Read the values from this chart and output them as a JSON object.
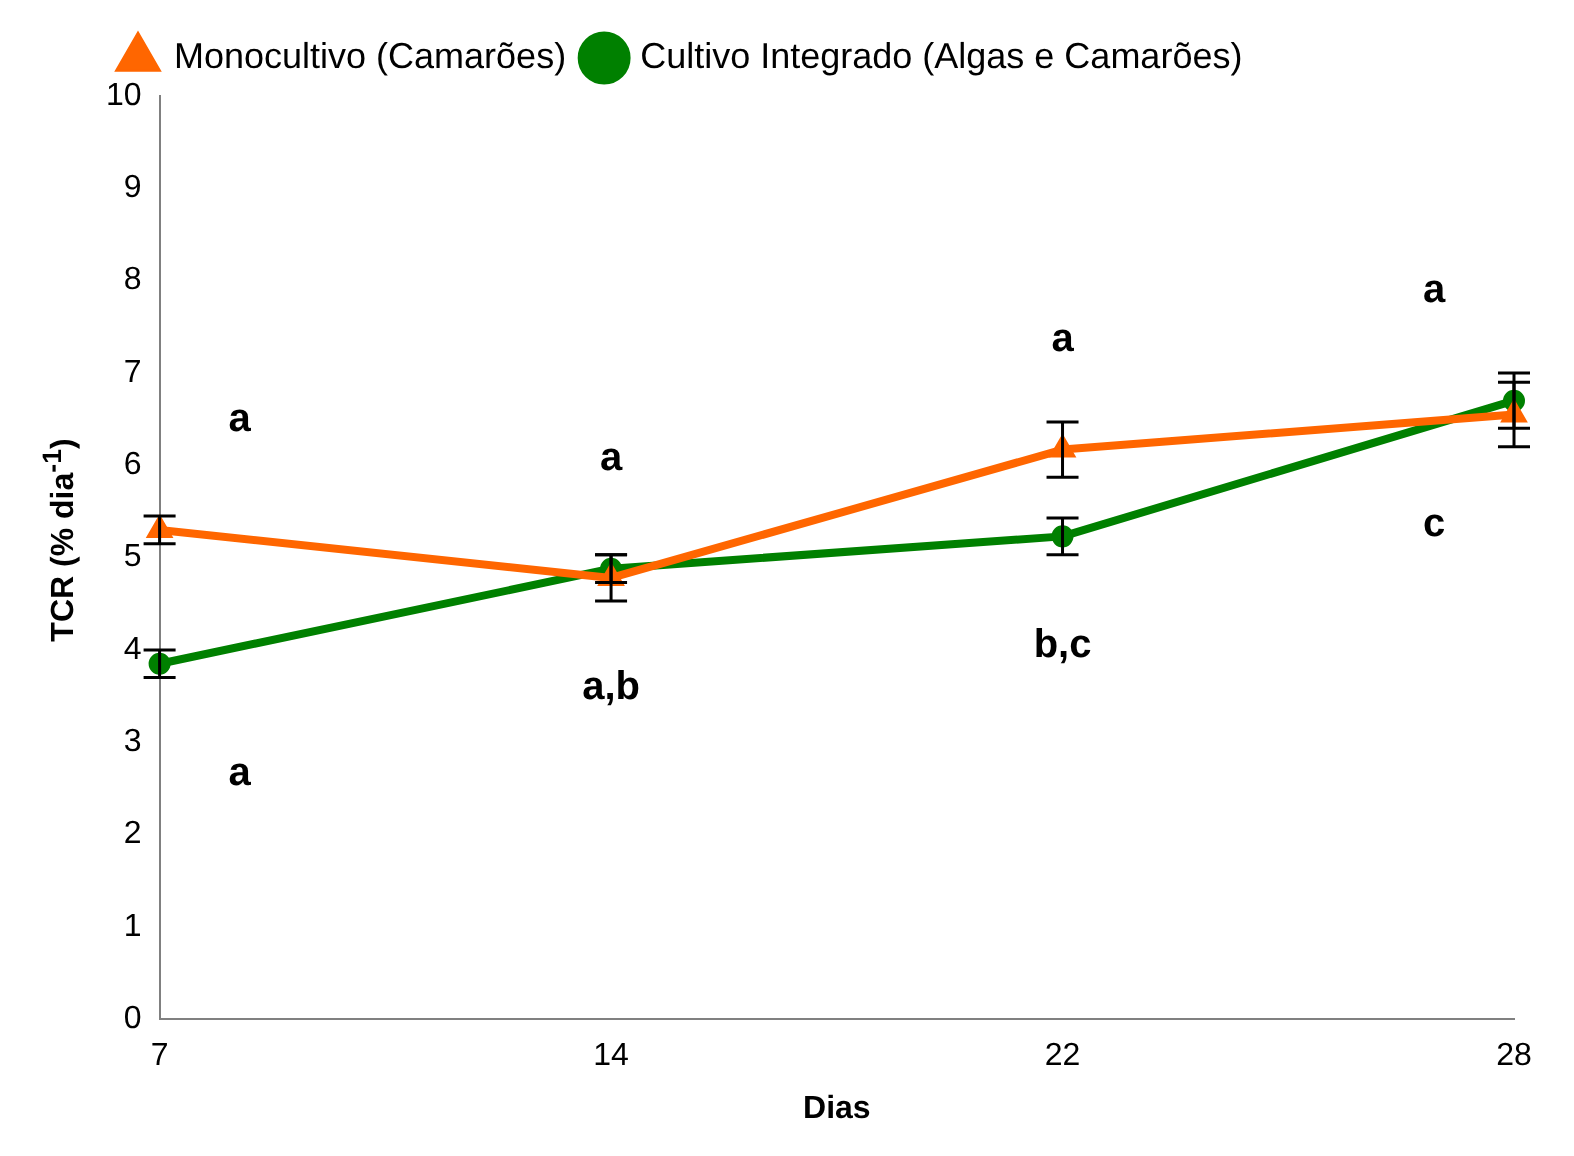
{
  "chart_data": {
    "type": "line",
    "xlabel": "Dias",
    "ylabel": "TCR (% dia$^{-1}$)",
    "categories": [
      "7",
      "14",
      "22",
      "28"
    ],
    "series": [
      {
        "name": "Monocultivo (Camarões)",
        "color": "#ff6600",
        "marker": "triangle",
        "values": [
          5.3,
          4.78,
          6.17,
          6.55
        ],
        "errors": [
          0.15,
          0.25,
          0.3,
          0.35
        ]
      },
      {
        "name": "Cultivo Integrado (Algas e Camarões)",
        "color": "#008000",
        "marker": "circle",
        "values": [
          3.85,
          4.88,
          5.23,
          6.7
        ],
        "errors": [
          0.15,
          0.15,
          0.2,
          0.3
        ]
      }
    ],
    "ylim": [
      0,
      10
    ],
    "yticks": [
      0,
      1,
      2,
      3,
      4,
      5,
      6,
      7,
      8,
      9,
      10
    ],
    "grid": false,
    "legend": "top left",
    "annotations": [
      "a",
      "a",
      "a",
      "a,b",
      "a",
      "b,c",
      "a",
      "c"
    ]
  }
}
